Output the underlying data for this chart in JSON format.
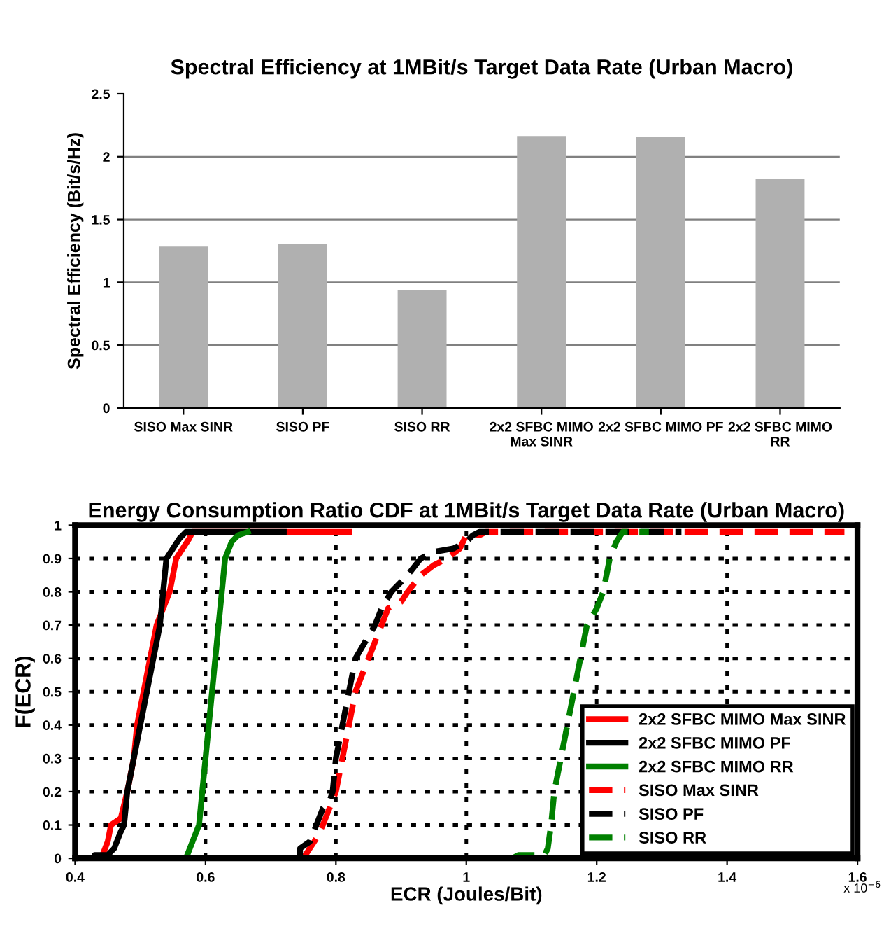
{
  "chart_data": [
    {
      "type": "bar",
      "title": "Spectral Efficiency at 1MBit/s Target Data Rate (Urban Macro)",
      "ylabel": "Spectral Efficiency (Bit/s/Hz)",
      "categories": [
        "SISO Max SINR",
        "SISO PF",
        "SISO RR",
        "2x2 SFBC MIMO\nMax SINR",
        "2x2 SFBC MIMO PF",
        "2x2 SFBC MIMO\nRR"
      ],
      "values": [
        1.28,
        1.3,
        0.93,
        2.16,
        2.15,
        1.82
      ],
      "color": "#b0b0b0",
      "ylim": [
        0,
        2.5
      ],
      "yticks": [
        0,
        0.5,
        1,
        1.5,
        2,
        2.5
      ],
      "grid": "y"
    },
    {
      "type": "line",
      "title": "Energy Consumption Ratio CDF at 1MBit/s Target Data Rate (Urban Macro)",
      "xlabel": "ECR (Joules/Bit)",
      "ylabel": "F(ECR)",
      "annotations": [
        "x 10$^{−6}$"
      ],
      "xlim": [
        0.4,
        1.6
      ],
      "xticks": [
        0.4,
        0.6,
        0.8,
        1,
        1.2,
        1.4,
        1.6
      ],
      "ylim": [
        0,
        1
      ],
      "yticks": [
        0,
        0.1,
        0.2,
        0.3,
        0.4,
        0.5,
        0.6,
        0.7,
        0.8,
        0.9,
        1
      ],
      "grid": true,
      "legend": "bottom right",
      "series": [
        {
          "name": "2x2 SFBC MIMO Max SINR",
          "color": "#ff0000",
          "line_style": "solid",
          "x": [
            0.44,
            0.45,
            0.455,
            0.47,
            0.48,
            0.49,
            0.495,
            0.505,
            0.515,
            0.525,
            0.535,
            0.545,
            0.55,
            0.555,
            0.565,
            0.575,
            0.58,
            0.82
          ],
          "values": [
            0,
            0.05,
            0.1,
            0.12,
            0.2,
            0.3,
            0.4,
            0.5,
            0.6,
            0.7,
            0.75,
            0.8,
            0.85,
            0.9,
            0.93,
            0.96,
            0.98,
            0.98
          ]
        },
        {
          "name": "2x2 SFBC MIMO PF",
          "color": "#000000",
          "line_style": "solid",
          "x": [
            0.43,
            0.43,
            0.45,
            0.46,
            0.47,
            0.475,
            0.48,
            0.49,
            0.5,
            0.51,
            0.52,
            0.53,
            0.535,
            0.54,
            0.55,
            0.56,
            0.57,
            0.72
          ],
          "values": [
            0,
            0.01,
            0.01,
            0.03,
            0.08,
            0.1,
            0.2,
            0.3,
            0.4,
            0.5,
            0.6,
            0.7,
            0.8,
            0.9,
            0.93,
            0.96,
            0.98,
            0.98
          ]
        },
        {
          "name": "2x2 SFBC MIMO RR",
          "color": "#008000",
          "line_style": "solid",
          "x": [
            0.57,
            0.58,
            0.59,
            0.595,
            0.6,
            0.605,
            0.61,
            0.615,
            0.62,
            0.625,
            0.63,
            0.64,
            0.65,
            0.665
          ],
          "values": [
            0,
            0.05,
            0.1,
            0.2,
            0.3,
            0.4,
            0.5,
            0.6,
            0.7,
            0.8,
            0.9,
            0.95,
            0.97,
            0.98
          ]
        },
        {
          "name": "SISO Max SINR",
          "color": "#ff0000",
          "line_style": "dashed",
          "x": [
            0.75,
            0.76,
            0.77,
            0.78,
            0.79,
            0.8,
            0.81,
            0.82,
            0.83,
            0.84,
            0.85,
            0.86,
            0.87,
            0.88,
            0.9,
            0.91,
            0.93,
            0.95,
            0.97,
            0.99,
            1.0,
            1.02,
            1.03,
            1.58
          ],
          "values": [
            0,
            0.03,
            0.06,
            0.1,
            0.15,
            0.2,
            0.3,
            0.4,
            0.5,
            0.55,
            0.6,
            0.65,
            0.7,
            0.75,
            0.77,
            0.8,
            0.85,
            0.88,
            0.9,
            0.93,
            0.97,
            0.97,
            0.98,
            0.98
          ]
        },
        {
          "name": "SISO PF",
          "color": "#000000",
          "line_style": "dashed",
          "x": [
            0.745,
            0.745,
            0.76,
            0.77,
            0.78,
            0.79,
            0.795,
            0.8,
            0.81,
            0.82,
            0.83,
            0.845,
            0.86,
            0.87,
            0.885,
            0.9,
            0.91,
            0.93,
            0.95,
            0.98,
            1.0,
            1.01,
            1.02,
            1.33
          ],
          "values": [
            0,
            0.03,
            0.05,
            0.1,
            0.15,
            0.17,
            0.2,
            0.3,
            0.4,
            0.5,
            0.6,
            0.65,
            0.7,
            0.75,
            0.8,
            0.83,
            0.85,
            0.9,
            0.92,
            0.93,
            0.95,
            0.97,
            0.98,
            0.98
          ]
        },
        {
          "name": "SISO RR",
          "color": "#008000",
          "line_style": "dashed",
          "x": [
            1.07,
            1.08,
            1.12,
            1.125,
            1.13,
            1.135,
            1.145,
            1.155,
            1.165,
            1.175,
            1.185,
            1.2,
            1.21,
            1.22,
            1.23,
            1.24,
            1.28
          ],
          "values": [
            0,
            0.01,
            0.01,
            0.03,
            0.1,
            0.2,
            0.3,
            0.4,
            0.5,
            0.6,
            0.7,
            0.75,
            0.8,
            0.9,
            0.95,
            0.98,
            0.98
          ]
        }
      ]
    }
  ]
}
